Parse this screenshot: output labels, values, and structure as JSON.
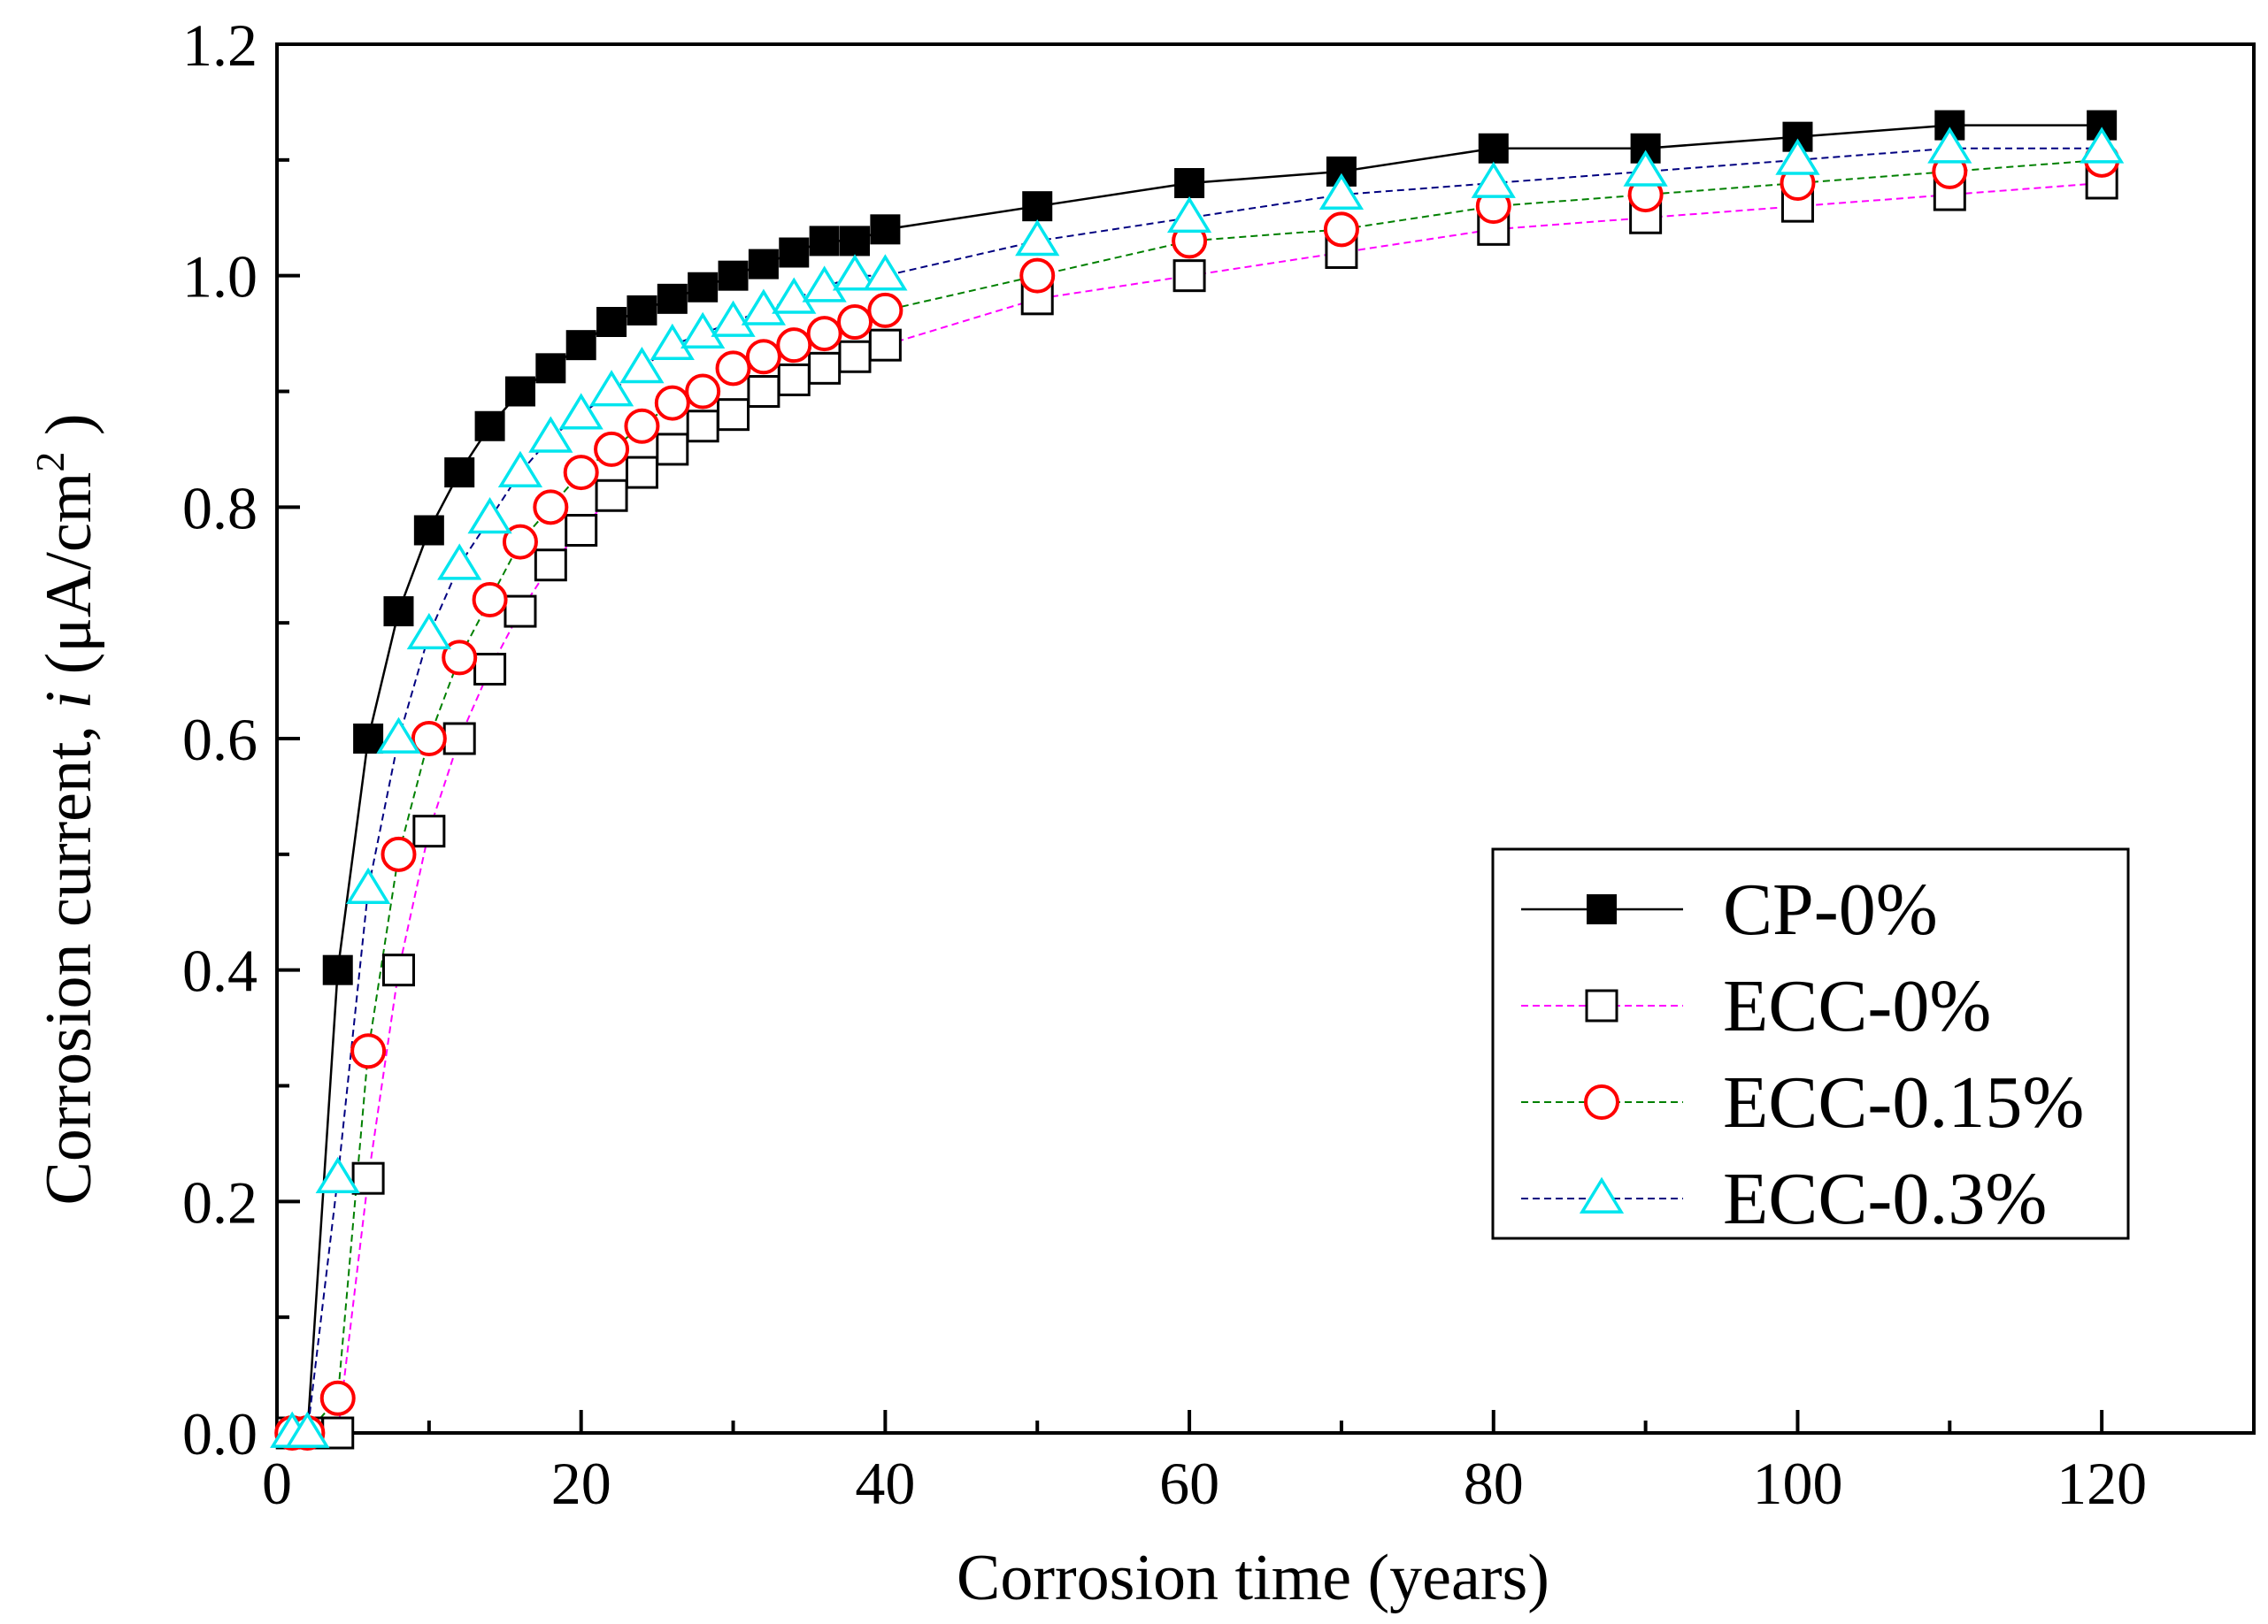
{
  "chart_data": {
    "type": "line",
    "title": "",
    "xlabel": "Corrosion time (years)",
    "ylabel_prefix": "Corrosion current, ",
    "ylabel_var": "i",
    "ylabel_units": " (μA/cm",
    "ylabel_sup": "2",
    "ylabel_close": " )",
    "xlim": [
      0,
      130
    ],
    "ylim": [
      0.0,
      1.2
    ],
    "xticks": [
      0,
      20,
      40,
      60,
      80,
      100,
      120
    ],
    "xtick_labels": [
      "0",
      "20",
      "40",
      "60",
      "80",
      "100",
      "120"
    ],
    "yticks": [
      0.0,
      0.2,
      0.4,
      0.6,
      0.8,
      1.0,
      1.2
    ],
    "ytick_labels": [
      "0.0",
      "0.2",
      "0.4",
      "0.6",
      "0.8",
      "1.0",
      "1.2"
    ],
    "grid": false,
    "legend_position": "center-right",
    "series": [
      {
        "name": "CP-0%",
        "marker": "filled-square",
        "line_style": "solid",
        "line_color": "#000000",
        "marker_color": "#000000",
        "x": [
          1,
          2,
          4,
          6,
          8,
          10,
          12,
          14,
          16,
          18,
          20,
          22,
          24,
          26,
          28,
          30,
          32,
          34,
          36,
          38,
          40,
          50,
          60,
          70,
          80,
          90,
          100,
          110,
          120
        ],
        "y": [
          0.0,
          0.0,
          0.4,
          0.6,
          0.71,
          0.78,
          0.83,
          0.87,
          0.9,
          0.92,
          0.94,
          0.96,
          0.97,
          0.98,
          0.99,
          1.0,
          1.01,
          1.02,
          1.03,
          1.03,
          1.04,
          1.06,
          1.08,
          1.09,
          1.11,
          1.11,
          1.12,
          1.13,
          1.13
        ]
      },
      {
        "name": "ECC-0%",
        "marker": "open-square",
        "line_style": "dashed",
        "line_color": "#ff00ff",
        "marker_color": "#000000",
        "x": [
          1,
          2,
          4,
          6,
          8,
          10,
          12,
          14,
          16,
          18,
          20,
          22,
          24,
          26,
          28,
          30,
          32,
          34,
          36,
          38,
          40,
          50,
          60,
          70,
          80,
          90,
          100,
          110,
          120
        ],
        "y": [
          0.0,
          0.0,
          0.0,
          0.22,
          0.4,
          0.52,
          0.6,
          0.66,
          0.71,
          0.75,
          0.78,
          0.81,
          0.83,
          0.85,
          0.87,
          0.88,
          0.9,
          0.91,
          0.92,
          0.93,
          0.94,
          0.98,
          1.0,
          1.02,
          1.04,
          1.05,
          1.06,
          1.07,
          1.08
        ]
      },
      {
        "name": "ECC-0.15%",
        "marker": "open-circle",
        "line_style": "dashed",
        "line_color": "#008000",
        "marker_color": "#ff0000",
        "x": [
          1,
          2,
          4,
          6,
          8,
          10,
          12,
          14,
          16,
          18,
          20,
          22,
          24,
          26,
          28,
          30,
          32,
          34,
          36,
          38,
          40,
          50,
          60,
          70,
          80,
          90,
          100,
          110,
          120
        ],
        "y": [
          0.0,
          0.0,
          0.03,
          0.33,
          0.5,
          0.6,
          0.67,
          0.72,
          0.77,
          0.8,
          0.83,
          0.85,
          0.87,
          0.89,
          0.9,
          0.92,
          0.93,
          0.94,
          0.95,
          0.96,
          0.97,
          1.0,
          1.03,
          1.04,
          1.06,
          1.07,
          1.08,
          1.09,
          1.1
        ]
      },
      {
        "name": "ECC-0.3%",
        "marker": "open-triangle",
        "line_style": "dashed",
        "line_color": "#000080",
        "marker_color": "#00e5ee",
        "x": [
          1,
          2,
          4,
          6,
          8,
          10,
          12,
          14,
          16,
          18,
          20,
          22,
          24,
          26,
          28,
          30,
          32,
          34,
          36,
          38,
          40,
          50,
          60,
          70,
          80,
          90,
          100,
          110,
          120
        ],
        "y": [
          0.0,
          0.0,
          0.22,
          0.47,
          0.6,
          0.69,
          0.75,
          0.79,
          0.83,
          0.86,
          0.88,
          0.9,
          0.92,
          0.94,
          0.95,
          0.96,
          0.97,
          0.98,
          0.99,
          1.0,
          1.0,
          1.03,
          1.05,
          1.07,
          1.08,
          1.09,
          1.1,
          1.11,
          1.11
        ]
      }
    ]
  }
}
